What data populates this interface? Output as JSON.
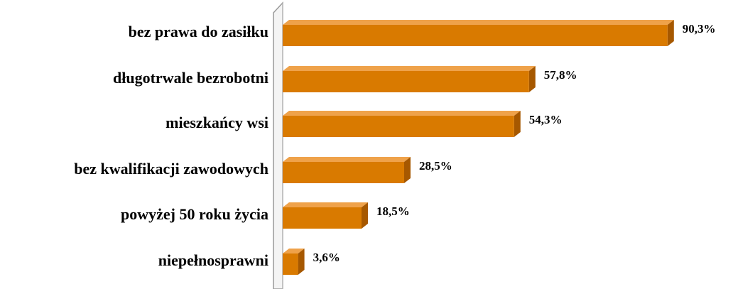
{
  "chart_data": {
    "type": "bar",
    "orientation": "horizontal",
    "categories": [
      "bez prawa do zasiłku",
      "długotrwale bezrobotni",
      "mieszkańcy wsi",
      "bez kwalifikacji zawodowych",
      "powyżej 50 roku życia",
      "niepełnosprawni"
    ],
    "values": [
      90.3,
      57.8,
      54.3,
      28.5,
      18.5,
      3.6
    ],
    "value_labels": [
      "90,3%",
      "57,8%",
      "54,3%",
      "28,5%",
      "18,5%",
      "3,6%"
    ],
    "color": "#d97a00",
    "xlim": [
      0,
      100
    ]
  }
}
